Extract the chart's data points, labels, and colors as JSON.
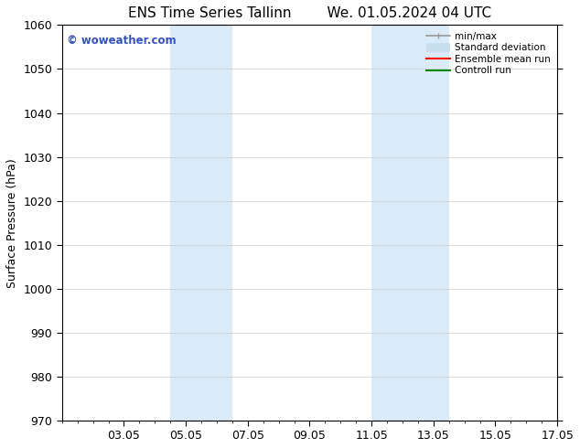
{
  "title": "ENS Time Series Tallinn",
  "title2": "We. 01.05.2024 04 UTC",
  "ylabel": "Surface Pressure (hPa)",
  "ylim": [
    970,
    1060
  ],
  "yticks": [
    970,
    980,
    990,
    1000,
    1010,
    1020,
    1030,
    1040,
    1050,
    1060
  ],
  "xlim": [
    0,
    16
  ],
  "xtick_labels": [
    "03.05",
    "05.05",
    "07.05",
    "09.05",
    "11.05",
    "13.05",
    "15.05",
    "17.05"
  ],
  "xtick_positions": [
    2,
    4,
    6,
    8,
    10,
    12,
    14,
    16
  ],
  "background_color": "#ffffff",
  "plot_bg_color": "#ffffff",
  "shaded_regions": [
    {
      "x_start": 3.5,
      "x_end": 5.5,
      "color": "#daeaf7"
    },
    {
      "x_start": 10.0,
      "x_end": 12.5,
      "color": "#daeaf7"
    }
  ],
  "watermark_text": "© woweather.com",
  "watermark_color": "#3355bb",
  "legend_items": [
    {
      "label": "min/max",
      "color": "#999999",
      "lw": 1.2
    },
    {
      "label": "Standard deviation",
      "color": "#c8dff0",
      "lw": 7
    },
    {
      "label": "Ensemble mean run",
      "color": "#ff0000",
      "lw": 1.5
    },
    {
      "label": "Controll run",
      "color": "#008800",
      "lw": 1.5
    }
  ],
  "grid_color": "#cccccc",
  "font_size": 9,
  "title_font_size": 11,
  "ylabel_font_size": 9
}
